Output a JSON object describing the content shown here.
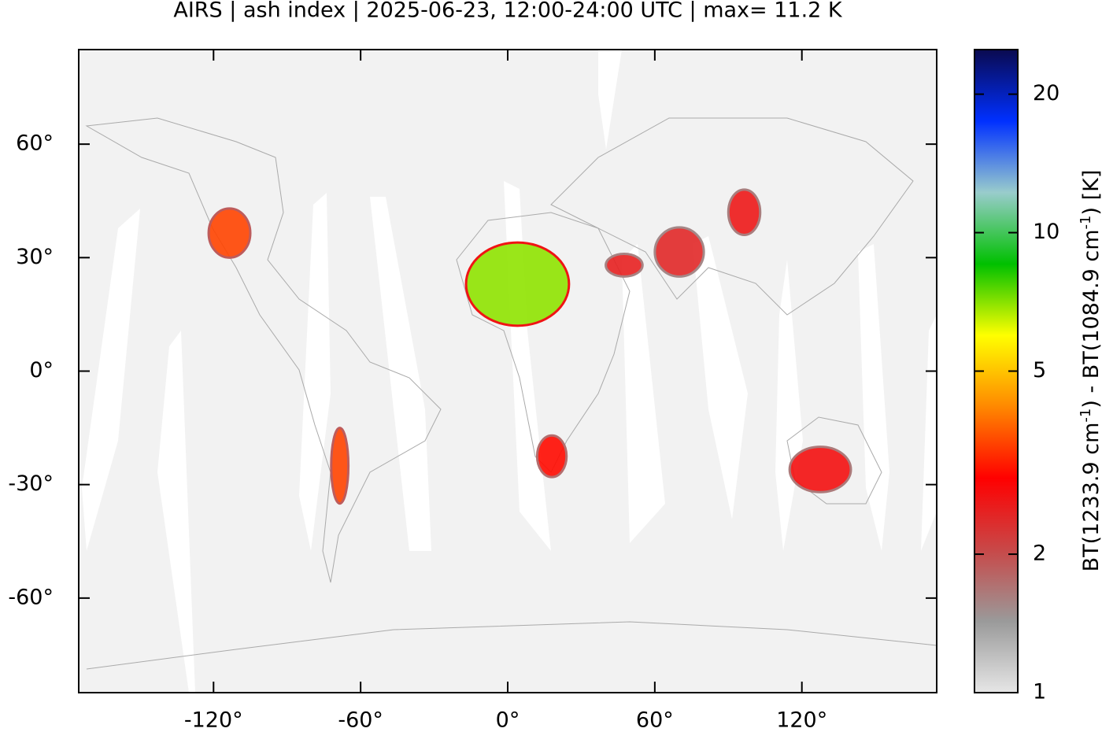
{
  "chart_data": {
    "type": "map",
    "title": "AIRS | ash index | 2025-06-23, 12:00-24:00 UTC | max= 11.2 K",
    "xlim": [
      -175,
      175
    ],
    "ylim": [
      -85,
      85
    ],
    "xticks": [
      {
        "value": -120,
        "label": "-120°"
      },
      {
        "value": -60,
        "label": "-60°"
      },
      {
        "value": 0,
        "label": "0°"
      },
      {
        "value": 60,
        "label": "60°"
      },
      {
        "value": 120,
        "label": "120°"
      }
    ],
    "yticks": [
      {
        "value": -60,
        "label": "-60°"
      },
      {
        "value": -30,
        "label": "-30°"
      },
      {
        "value": 0,
        "label": "0°"
      },
      {
        "value": 30,
        "label": "30°"
      },
      {
        "value": 60,
        "label": "60°"
      }
    ],
    "colorbar": {
      "label": [
        "BT(1233.9 cm",
        "-1",
        ") - BT(1084.9 cm",
        "-1",
        ") [K]"
      ],
      "lim": [
        1,
        25
      ],
      "log": true,
      "ticks": [
        1,
        2,
        5,
        10,
        20
      ],
      "colormap": [
        "#e6e6e6",
        "#9a9a9a",
        "#c84848",
        "#ff0000",
        "#ff8800",
        "#ffff00",
        "#00c000",
        "#99cccc",
        "#0030ff",
        "#0a0a50"
      ]
    },
    "regions": [
      {
        "lon": [
          -17,
          25
        ],
        "lat": [
          12,
          34
        ],
        "value": 7
      },
      {
        "lon": [
          -122,
          -105
        ],
        "lat": [
          30,
          43
        ],
        "value": 3.5
      },
      {
        "lon": [
          -72,
          -65
        ],
        "lat": [
          -35,
          -15
        ],
        "value": 3.5
      },
      {
        "lon": [
          12,
          24
        ],
        "lat": [
          -28,
          -17
        ],
        "value": 3
      },
      {
        "lon": [
          115,
          140
        ],
        "lat": [
          -32,
          -20
        ],
        "value": 2.7
      },
      {
        "lon": [
          40,
          55
        ],
        "lat": [
          25,
          31
        ],
        "value": 2.5
      },
      {
        "lon": [
          90,
          103
        ],
        "lat": [
          36,
          48
        ],
        "value": 2.6
      },
      {
        "lon": [
          60,
          80
        ],
        "lat": [
          25,
          38
        ],
        "value": 2.4
      }
    ]
  }
}
